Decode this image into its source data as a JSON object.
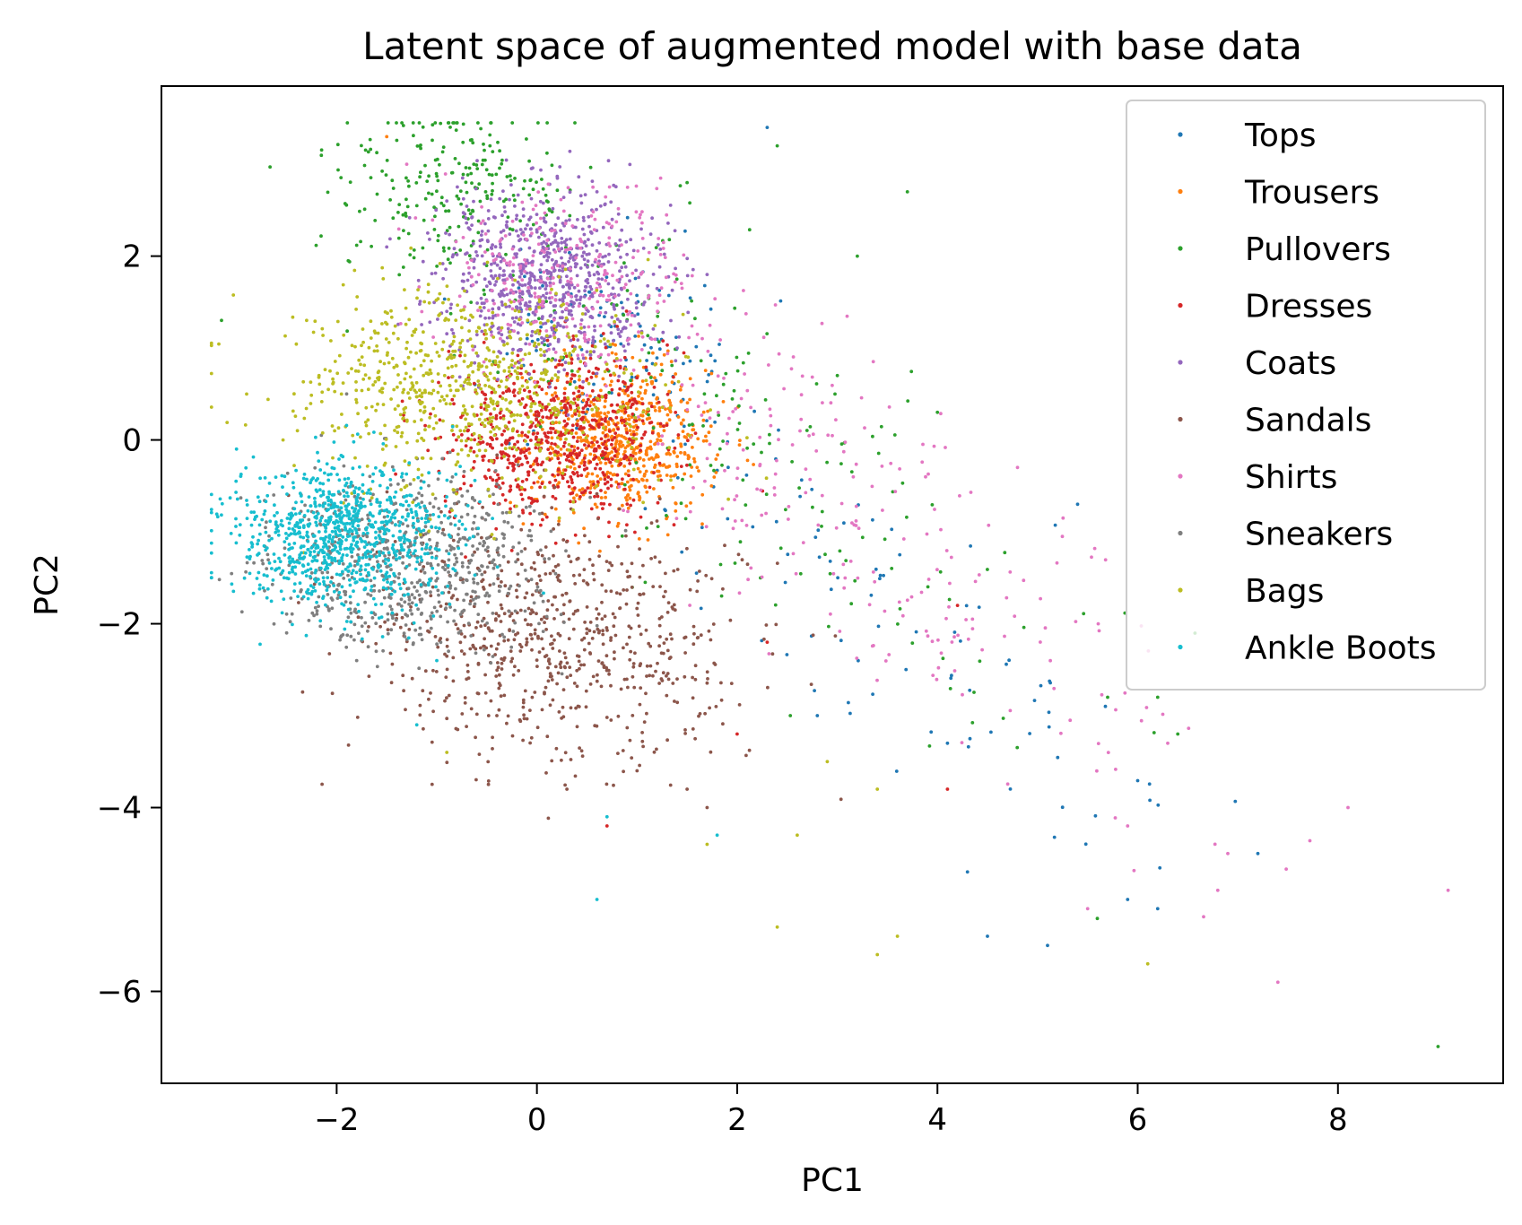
{
  "chart_data": {
    "type": "scatter",
    "title": "Latent space of augmented model with base data",
    "xlabel": "PC1",
    "ylabel": "PC2",
    "xlim": [
      -3.75,
      9.65
    ],
    "ylim": [
      -7.0,
      3.85
    ],
    "x_ticks": [
      -2,
      0,
      2,
      4,
      6,
      8
    ],
    "y_ticks": [
      2,
      0,
      -2,
      -4,
      -6
    ],
    "x_tick_labels": [
      "−2",
      "0",
      "2",
      "4",
      "6",
      "8"
    ],
    "y_tick_labels": [
      "2",
      "0",
      "−2",
      "−4",
      "−6"
    ],
    "grid": false,
    "legend_position": "upper right",
    "series": [
      {
        "name": "Tops",
        "color": "#1f77b4",
        "center": [
          1.9,
          -0.2
        ],
        "spread": [
          1.9,
          1.9
        ],
        "tail": [
          [
            5.4,
            -0.7
          ],
          [
            4.5,
            -5.4
          ],
          [
            5.1,
            -5.5
          ],
          [
            6.2,
            -5.1
          ],
          [
            7.2,
            -4.5
          ],
          [
            2.3,
            3.4
          ],
          [
            2.8,
            -3.0
          ],
          [
            4.1,
            -3.3
          ],
          [
            5.9,
            -5.0
          ],
          [
            4.3,
            -4.7
          ]
        ]
      },
      {
        "name": "Trousers",
        "color": "#ff7f0e",
        "center": [
          0.85,
          0.0
        ],
        "spread": [
          0.45,
          0.4
        ],
        "tail": [
          [
            -1.5,
            3.3
          ],
          [
            0.3,
            0.7
          ],
          [
            1.2,
            0.4
          ],
          [
            0.6,
            0.3
          ],
          [
            1.6,
            -0.3
          ]
        ]
      },
      {
        "name": "Pullovers",
        "color": "#2ca02c",
        "center": [
          0.4,
          1.5
        ],
        "spread": [
          1.2,
          1.0
        ],
        "tail": [
          [
            9.0,
            -6.6
          ],
          [
            2.4,
            3.2
          ],
          [
            3.7,
            2.7
          ],
          [
            6.4,
            -3.2
          ],
          [
            1.5,
            2.8
          ],
          [
            3.2,
            2.0
          ],
          [
            5.7,
            -2.8
          ],
          [
            4.0,
            0.3
          ],
          [
            6.2,
            -2.8
          ],
          [
            3.0,
            0.7
          ]
        ]
      },
      {
        "name": "Dresses",
        "color": "#d62728",
        "center": [
          0.2,
          0.05
        ],
        "spread": [
          0.55,
          0.45
        ],
        "tail": [
          [
            0.7,
            -4.2
          ],
          [
            4.2,
            -1.8
          ],
          [
            2.3,
            -2.2
          ],
          [
            4.1,
            -3.8
          ],
          [
            2.0,
            -3.2
          ]
        ]
      },
      {
        "name": "Coats",
        "color": "#9467bd",
        "center": [
          0.1,
          1.8
        ],
        "spread": [
          0.55,
          0.45
        ],
        "tail": [
          [
            -0.9,
            2.6
          ],
          [
            0.6,
            2.7
          ],
          [
            1.4,
            1.0
          ],
          [
            -1.5,
            2.1
          ],
          [
            1.7,
            1.8
          ]
        ]
      },
      {
        "name": "Sandals",
        "color": "#8c564b",
        "center": [
          0.2,
          -2.2
        ],
        "spread": [
          0.9,
          0.65
        ],
        "tail": [
          [
            1.0,
            -3.6
          ],
          [
            1.7,
            -4.0
          ],
          [
            0.3,
            -3.8
          ],
          [
            1.4,
            -2.6
          ],
          [
            -0.4,
            -3.0
          ],
          [
            1.5,
            -3.8
          ]
        ]
      },
      {
        "name": "Shirts",
        "color": "#e377c2",
        "center": [
          1.5,
          0.6
        ],
        "spread": [
          2.0,
          1.8
        ],
        "tail": [
          [
            9.1,
            -4.9
          ],
          [
            7.4,
            -5.9
          ],
          [
            8.1,
            -4.0
          ],
          [
            6.8,
            -4.9
          ],
          [
            6.9,
            -4.5
          ],
          [
            -1.3,
            3.0
          ],
          [
            6.3,
            -3.3
          ],
          [
            5.5,
            -5.1
          ],
          [
            4.8,
            -0.3
          ],
          [
            5.9,
            -4.2
          ]
        ]
      },
      {
        "name": "Sneakers",
        "color": "#7f7f7f",
        "center": [
          -1.3,
          -1.3
        ],
        "spread": [
          0.7,
          0.45
        ],
        "tail": [
          [
            -1.9,
            0.5
          ],
          [
            -2.5,
            -2.1
          ],
          [
            -1.8,
            -2.4
          ],
          [
            -0.5,
            -0.8
          ],
          [
            -2.7,
            -1.4
          ]
        ]
      },
      {
        "name": "Bags",
        "color": "#bcbd22",
        "center": [
          -0.7,
          0.55
        ],
        "spread": [
          0.9,
          0.55
        ],
        "tail": [
          [
            3.4,
            -5.6
          ],
          [
            6.1,
            -5.7
          ],
          [
            2.4,
            -5.3
          ],
          [
            3.6,
            -5.4
          ],
          [
            2.6,
            -4.3
          ],
          [
            1.7,
            -4.4
          ],
          [
            -0.9,
            -3.4
          ],
          [
            3.4,
            -3.8
          ],
          [
            2.9,
            -3.5
          ],
          [
            -2.3,
            1.3
          ]
        ]
      },
      {
        "name": "Ankle Boots",
        "color": "#17becf",
        "center": [
          -2.0,
          -1.05
        ],
        "spread": [
          0.55,
          0.4
        ],
        "tail": [
          [
            0.6,
            -5.0
          ],
          [
            0.7,
            -4.1
          ],
          [
            1.8,
            -4.3
          ],
          [
            -1.2,
            -3.1
          ],
          [
            -3.0,
            -0.1
          ],
          [
            -1.0,
            -2.4
          ]
        ]
      }
    ]
  }
}
